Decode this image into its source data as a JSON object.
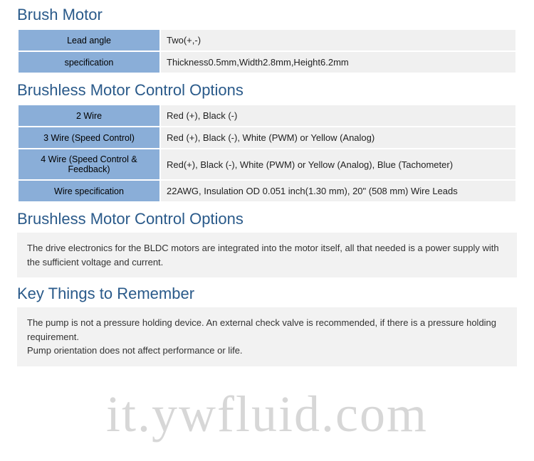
{
  "sections": {
    "brush_motor": {
      "title": "Brush Motor",
      "rows": [
        {
          "label": "Lead angle",
          "value": "Two(+,-)"
        },
        {
          "label": "specification",
          "value": "Thickness0.5mm,Width2.8mm,Height6.2mm"
        }
      ]
    },
    "brushless_options": {
      "title": "Brushless Motor Control Options",
      "rows": [
        {
          "label": "2 Wire",
          "value": "Red (+), Black (-)"
        },
        {
          "label": "3 Wire (Speed Control)",
          "value": "Red (+), Black (-), White (PWM) or Yellow (Analog)"
        },
        {
          "label": "4 Wire (Speed Control & Feedback)",
          "value": "Red(+), Black (-), White (PWM) or Yellow (Analog), Blue (Tachometer)"
        },
        {
          "label": "Wire specification",
          "value": "22AWG, Insulation OD 0.051 inch(1.30 mm), 20\" (508 mm) Wire Leads"
        }
      ]
    },
    "brushless_note": {
      "title": "Brushless Motor Control Options",
      "text": "The drive electronics for the BLDC motors are integrated into the motor itself, all that needed is a power supply with the sufficient voltage and current."
    },
    "key_things": {
      "title": "Key Things to Remember",
      "line1": "The pump is not a pressure holding device. An external check valve is recommended, if there is a pressure holding requirement.",
      "line2": "Pump orientation does not affect performance or life."
    }
  },
  "watermark": "it.ywfluid.com",
  "colors": {
    "title_color": "#2a5a8a",
    "label_bg": "#8aaed8",
    "value_bg": "#f0f0f0",
    "note_bg": "#f2f2f2",
    "watermark_color": "rgba(140,140,140,0.35)"
  }
}
